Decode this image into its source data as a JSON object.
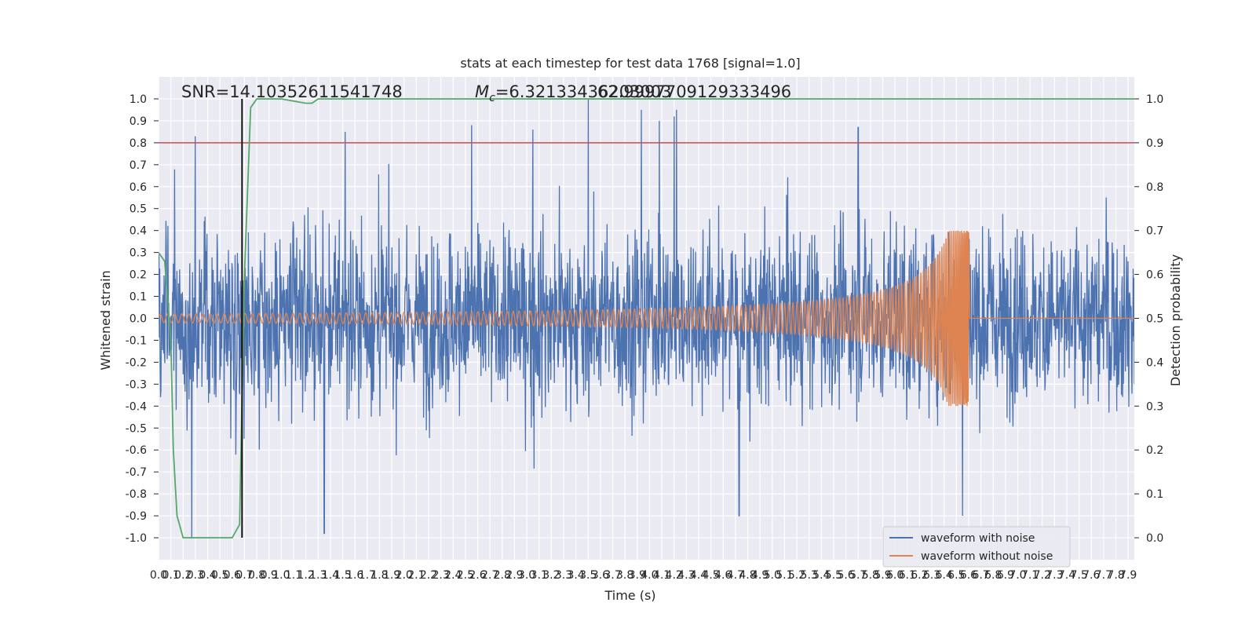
{
  "chart_data": {
    "type": "line",
    "title": "stats at each timestep for test data 1768 [signal=1.0]",
    "xlabel": "Time (s)",
    "ylabel": "Whitened strain",
    "y2label": "Detection probability",
    "xlim": [
      0.0,
      7.95
    ],
    "ylim": [
      -1.1,
      1.1
    ],
    "y2lim": [
      -0.05,
      1.05
    ],
    "xticks": [
      0.0,
      0.1,
      0.2,
      0.3,
      0.4,
      0.5,
      0.6,
      0.7,
      0.8,
      0.9,
      1.0,
      1.1,
      1.2,
      1.3,
      1.4,
      1.5,
      1.6,
      1.7,
      1.8,
      1.9,
      2.0,
      2.1,
      2.2,
      2.3,
      2.4,
      2.5,
      2.6,
      2.7,
      2.8,
      2.9,
      3.0,
      3.1,
      3.2,
      3.3,
      3.4,
      3.5,
      3.6,
      3.7,
      3.8,
      3.9,
      4.0,
      4.1,
      4.2,
      4.3,
      4.4,
      4.5,
      4.6,
      4.7,
      4.8,
      4.9,
      5.0,
      5.1,
      5.2,
      5.3,
      5.4,
      5.5,
      5.6,
      5.7,
      5.8,
      5.9,
      6.0,
      6.1,
      6.2,
      6.3,
      6.4,
      6.5,
      6.6,
      6.7,
      6.8,
      6.9,
      7.0,
      7.1,
      7.2,
      7.3,
      7.4,
      7.5,
      7.6,
      7.7,
      7.8,
      7.9
    ],
    "yticks": [
      -1.0,
      -0.9,
      -0.8,
      -0.7,
      -0.6,
      -0.5,
      -0.4,
      -0.3,
      -0.2,
      -0.1,
      0.0,
      0.1,
      0.2,
      0.3,
      0.4,
      0.5,
      0.6,
      0.7,
      0.8,
      0.9,
      1.0
    ],
    "y2ticks": [
      0.0,
      0.1,
      0.2,
      0.3,
      0.4,
      0.5,
      0.6,
      0.7,
      0.8,
      0.9,
      1.0
    ],
    "annotations": {
      "snr": "SNR=14.10352611541748",
      "mc": "=6.32133436203003",
      "mc_symbol": "M",
      "mc_subscript": "c",
      "overlap": "62.9997709129333496"
    },
    "marker_time": 0.68,
    "threshold_probability": 0.9,
    "colors": {
      "noise": "#4c72b0",
      "clean": "#dd8452",
      "probability": "#55a868",
      "threshold": "#c44e52",
      "marker": "#000000",
      "background": "#eaeaf2",
      "grid": "#ffffff"
    },
    "series": [
      {
        "name": "waveform with noise",
        "description": "whitened noisy strain, amplitude roughly -0.5..0.5 with spikes up to ~1.0 and down to ~-1.0 (e.g. t=3.5 s peak 1.0, t=1.35 s min -0.98)"
      },
      {
        "name": "waveform without noise",
        "description": "clean chirp, amplitude ~0.02 at t=0 growing to ~0.4 at merger t=6.6 s, then zero",
        "chirp": {
          "merger_time": 6.6,
          "start_amplitude": 0.02,
          "peak_amplitude": 0.4
        }
      },
      {
        "name": "detection probability",
        "axis": "right",
        "x": [
          0.0,
          0.05,
          0.1,
          0.12,
          0.15,
          0.2,
          0.25,
          0.5,
          0.6,
          0.66,
          0.7,
          0.75,
          0.8,
          1.0,
          1.2,
          1.25,
          1.3,
          1.5,
          7.95
        ],
        "values": [
          0.65,
          0.63,
          0.45,
          0.2,
          0.05,
          0.0,
          0.0,
          0.0,
          0.0,
          0.03,
          0.6,
          0.98,
          1.0,
          1.0,
          0.99,
          0.99,
          1.0,
          1.0,
          1.0
        ]
      }
    ],
    "legend": {
      "location": "lower-right",
      "entries": [
        "waveform with noise",
        "waveform without noise"
      ]
    }
  }
}
